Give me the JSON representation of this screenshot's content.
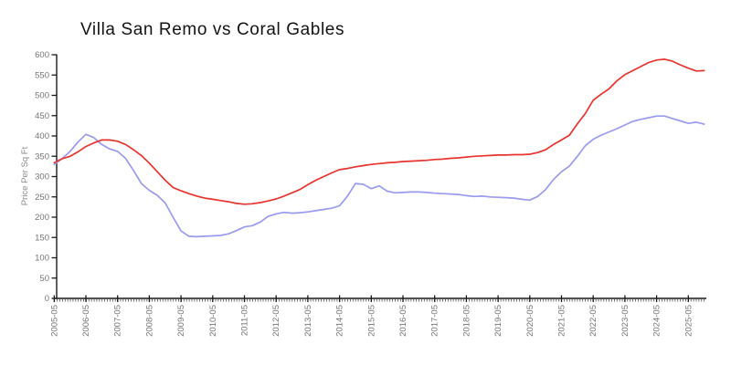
{
  "title": "Villa San Remo vs Coral Gables",
  "chart_data": {
    "type": "line",
    "title": "Villa San Remo vs Coral Gables",
    "xlabel": "",
    "ylabel": "Price Per Sq Ft",
    "ylim": [
      0,
      600
    ],
    "y_ticks": [
      0,
      50,
      100,
      150,
      200,
      250,
      300,
      350,
      400,
      450,
      500,
      550,
      600
    ],
    "x_tick_labels": [
      "2005-05",
      "2006-05",
      "2007-05",
      "2008-05",
      "2009-05",
      "2010-05",
      "2011-05",
      "2012-05",
      "2013-05",
      "2014-05",
      "2015-05",
      "2016-05",
      "2017-05",
      "2018-05",
      "2019-05",
      "2020-05",
      "2021-05",
      "2022-05",
      "2023-05",
      "2024-05",
      "2025-05"
    ],
    "grid": false,
    "legend_position": "none",
    "x_start_year": 2005.33,
    "x_step_years": 0.25,
    "series": [
      {
        "name": "blue-series",
        "color": "#9a9af0",
        "values": [
          330,
          344,
          362,
          385,
          404,
          396,
          379,
          368,
          362,
          345,
          315,
          283,
          266,
          254,
          235,
          200,
          166,
          153,
          152,
          153,
          154,
          155,
          159,
          167,
          176,
          179,
          188,
          202,
          208,
          212,
          210,
          211,
          213,
          216,
          219,
          222,
          228,
          252,
          283,
          281,
          270,
          277,
          264,
          260,
          261,
          262,
          262,
          261,
          259,
          258,
          257,
          256,
          253,
          251,
          252,
          250,
          249,
          248,
          247,
          244,
          242,
          251,
          268,
          293,
          312,
          326,
          350,
          376,
          392,
          402,
          410,
          418,
          427,
          436,
          441,
          445,
          449,
          449,
          443,
          437,
          431,
          434,
          429
        ]
      },
      {
        "name": "red-series",
        "color": "#e8332e",
        "values": [
          334,
          344,
          350,
          361,
          374,
          383,
          390,
          390,
          387,
          379,
          366,
          352,
          333,
          312,
          291,
          273,
          265,
          258,
          252,
          247,
          244,
          241,
          238,
          234,
          232,
          233,
          236,
          240,
          245,
          252,
          260,
          268,
          280,
          291,
          300,
          309,
          317,
          320,
          324,
          327,
          330,
          332,
          334,
          335,
          337,
          338,
          339,
          340,
          342,
          343,
          345,
          346,
          348,
          350,
          351,
          352,
          353,
          353,
          354,
          354,
          355,
          359,
          366,
          379,
          390,
          402,
          430,
          455,
          488,
          503,
          516,
          536,
          551,
          561,
          571,
          581,
          587,
          589,
          584,
          575,
          567,
          560,
          561
        ]
      }
    ]
  },
  "colors": {
    "axis": "#1a1a1a",
    "tick_label": "#767676",
    "background": "#ffffff"
  }
}
